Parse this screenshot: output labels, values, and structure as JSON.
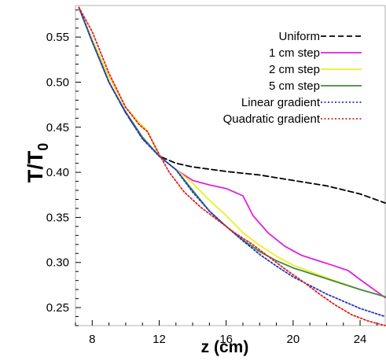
{
  "chart_data": {
    "type": "line",
    "xlabel": "z (cm)",
    "ylabel_main": "T/T",
    "ylabel_sub": "0",
    "xlim": [
      7,
      25.5
    ],
    "ylim": [
      0.23,
      0.585
    ],
    "xticks": [
      "8",
      "12",
      "16",
      "20",
      "24"
    ],
    "yticks": [
      "0.55",
      "0.50",
      "0.45",
      "0.40",
      "0.35",
      "0.30",
      "0.25"
    ],
    "xtick_values": [
      8,
      12,
      16,
      20,
      24
    ],
    "ytick_values": [
      0.55,
      0.5,
      0.45,
      0.4,
      0.35,
      0.3,
      0.25
    ],
    "legend_position": "top-right",
    "series": [
      {
        "name": "Uniform",
        "color": "#000000",
        "dash": "dashed",
        "points": [
          [
            7.2,
            0.583
          ],
          [
            8,
            0.545
          ],
          [
            9,
            0.5
          ],
          [
            10,
            0.466
          ],
          [
            11,
            0.438
          ],
          [
            12,
            0.418
          ],
          [
            13,
            0.41
          ],
          [
            14,
            0.406
          ],
          [
            16,
            0.401
          ],
          [
            18,
            0.397
          ],
          [
            20,
            0.391
          ],
          [
            22,
            0.385
          ],
          [
            24,
            0.376
          ],
          [
            25.5,
            0.366
          ]
        ]
      },
      {
        "name": "1 cm step",
        "color": "#dd22dd",
        "dash": "solid",
        "points": [
          [
            7.2,
            0.583
          ],
          [
            8,
            0.547
          ],
          [
            9,
            0.506
          ],
          [
            10,
            0.472
          ],
          [
            10.8,
            0.455
          ],
          [
            11.3,
            0.446
          ],
          [
            12,
            0.418
          ],
          [
            13,
            0.403
          ],
          [
            14,
            0.391
          ],
          [
            15,
            0.386
          ],
          [
            16,
            0.382
          ],
          [
            17,
            0.374
          ],
          [
            17.6,
            0.352
          ],
          [
            18.5,
            0.333
          ],
          [
            19.5,
            0.318
          ],
          [
            20.5,
            0.308
          ],
          [
            21.5,
            0.302
          ],
          [
            22.5,
            0.296
          ],
          [
            23.3,
            0.291
          ],
          [
            24,
            0.281
          ],
          [
            25.5,
            0.261
          ]
        ]
      },
      {
        "name": "2 cm step",
        "color": "#eeee22",
        "dash": "solid",
        "points": [
          [
            7.2,
            0.583
          ],
          [
            8,
            0.547
          ],
          [
            9,
            0.506
          ],
          [
            10,
            0.472
          ],
          [
            10.8,
            0.455
          ],
          [
            11.3,
            0.446
          ],
          [
            12,
            0.418
          ],
          [
            13,
            0.403
          ],
          [
            14,
            0.388
          ],
          [
            15,
            0.369
          ],
          [
            16,
            0.352
          ],
          [
            17,
            0.333
          ],
          [
            18,
            0.319
          ],
          [
            19,
            0.307
          ],
          [
            20,
            0.297
          ],
          [
            22,
            0.283
          ],
          [
            24,
            0.27
          ],
          [
            25.5,
            0.262
          ]
        ]
      },
      {
        "name": "5 cm step",
        "color": "#448844",
        "dash": "solid",
        "points": [
          [
            7.2,
            0.583
          ],
          [
            8,
            0.545
          ],
          [
            9,
            0.5
          ],
          [
            10,
            0.467
          ],
          [
            11,
            0.439
          ],
          [
            12,
            0.418
          ],
          [
            13,
            0.403
          ],
          [
            14,
            0.38
          ],
          [
            15,
            0.357
          ],
          [
            16,
            0.34
          ],
          [
            17,
            0.325
          ],
          [
            18,
            0.312
          ],
          [
            19,
            0.302
          ],
          [
            20,
            0.294
          ],
          [
            22,
            0.282
          ],
          [
            24,
            0.27
          ],
          [
            25.5,
            0.262
          ]
        ]
      },
      {
        "name": "Linear gradient",
        "color": "#2233cc",
        "dash": "dotted",
        "points": [
          [
            7.2,
            0.583
          ],
          [
            8,
            0.545
          ],
          [
            9,
            0.5
          ],
          [
            10,
            0.466
          ],
          [
            11,
            0.437
          ],
          [
            12,
            0.418
          ],
          [
            13,
            0.403
          ],
          [
            14,
            0.378
          ],
          [
            15,
            0.357
          ],
          [
            16,
            0.34
          ],
          [
            17,
            0.324
          ],
          [
            18,
            0.309
          ],
          [
            19,
            0.296
          ],
          [
            20,
            0.284
          ],
          [
            22,
            0.265
          ],
          [
            24,
            0.249
          ],
          [
            25.5,
            0.24
          ]
        ]
      },
      {
        "name": "Quadratic gradient",
        "color": "#dd2222",
        "dash": "dotted",
        "points": [
          [
            7.2,
            0.583
          ],
          [
            8,
            0.556
          ],
          [
            9,
            0.51
          ],
          [
            10,
            0.472
          ],
          [
            10.8,
            0.453
          ],
          [
            11.3,
            0.445
          ],
          [
            12,
            0.42
          ],
          [
            12.6,
            0.4
          ],
          [
            13.5,
            0.378
          ],
          [
            14.5,
            0.361
          ],
          [
            15.5,
            0.347
          ],
          [
            16.5,
            0.333
          ],
          [
            17.5,
            0.321
          ],
          [
            18.5,
            0.307
          ],
          [
            19.5,
            0.293
          ],
          [
            20.5,
            0.28
          ],
          [
            21.5,
            0.266
          ],
          [
            22.5,
            0.253
          ],
          [
            23.5,
            0.242
          ],
          [
            24.5,
            0.235
          ],
          [
            25.5,
            0.23
          ]
        ]
      }
    ]
  }
}
